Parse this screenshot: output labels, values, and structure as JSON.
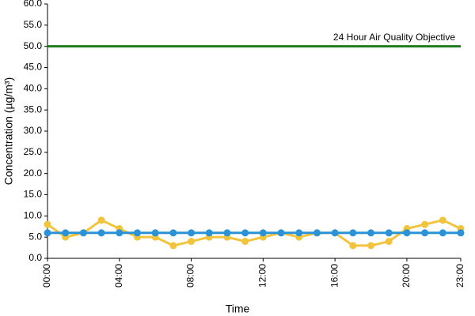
{
  "chart_data": {
    "type": "line",
    "xlabel": "Time",
    "ylabel": "Concentration (µg/m³)",
    "categories": [
      "00:00",
      null,
      null,
      null,
      "04:00",
      null,
      null,
      null,
      "08:00",
      null,
      null,
      null,
      "12:00",
      null,
      null,
      null,
      "16:00",
      null,
      null,
      null,
      "20:00",
      null,
      null,
      "23:00"
    ],
    "series": [
      {
        "color": "#f2c43d",
        "values": [
          8,
          5,
          6,
          9,
          7,
          5,
          5,
          3,
          4,
          5,
          5,
          4,
          5,
          6,
          5,
          6,
          6,
          3,
          3,
          4,
          7,
          8,
          9,
          7
        ]
      },
      {
        "color": "#2a93d8",
        "values": [
          6,
          6,
          6,
          6,
          6,
          6,
          6,
          6,
          6,
          6,
          6,
          6,
          6,
          6,
          6,
          6,
          6,
          6,
          6,
          6,
          6,
          6,
          6,
          6
        ]
      }
    ],
    "reference_line": {
      "label": "24 Hour Air Quality Objective",
      "value": 50,
      "color": "#1e7b1e"
    },
    "ylim": [
      0,
      60
    ],
    "yticks": [
      {
        "value": 0,
        "label": "0.0"
      },
      {
        "value": 5,
        "label": "5.0"
      },
      {
        "value": 10,
        "label": "10.0"
      },
      {
        "value": 15,
        "label": "15.0"
      },
      {
        "value": 20,
        "label": "20.0"
      },
      {
        "value": 25,
        "label": "25.0"
      },
      {
        "value": 30,
        "label": "30.0"
      },
      {
        "value": 35,
        "label": "35.0"
      },
      {
        "value": 40,
        "label": "40.0"
      },
      {
        "value": 45,
        "label": "45.0"
      },
      {
        "value": 50,
        "label": "50.0"
      },
      {
        "value": 55,
        "label": "55.0"
      },
      {
        "value": 60,
        "label": "60.0"
      }
    ],
    "grid": false
  }
}
